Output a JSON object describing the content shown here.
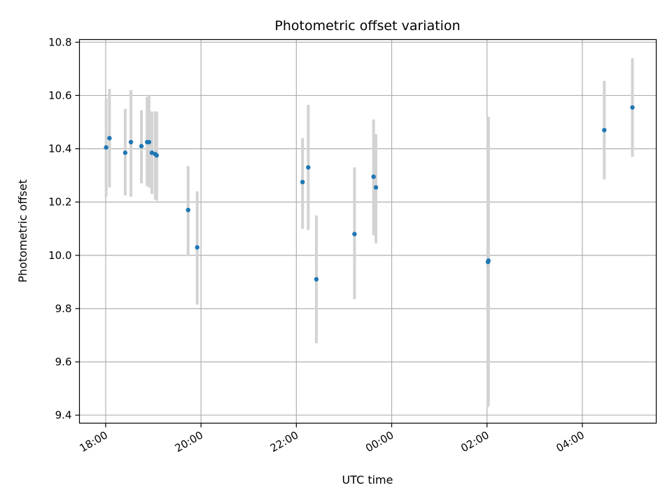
{
  "chart_data": {
    "type": "scatter",
    "title": "Photometric offset variation",
    "xlabel": "UTC time",
    "ylabel": "Photometric offset",
    "grid": true,
    "x_range_hours": [
      17.45,
      29.55
    ],
    "ylim": [
      9.37,
      10.81
    ],
    "x_ticks": [
      {
        "hour": 18,
        "label": "18:00"
      },
      {
        "hour": 20,
        "label": "20:00"
      },
      {
        "hour": 22,
        "label": "22:00"
      },
      {
        "hour": 24,
        "label": "00:00"
      },
      {
        "hour": 26,
        "label": "02:00"
      },
      {
        "hour": 28,
        "label": "04:00"
      }
    ],
    "y_ticks": [
      {
        "value": 9.4,
        "label": "9.4"
      },
      {
        "value": 9.6,
        "label": "9.6"
      },
      {
        "value": 9.8,
        "label": "9.8"
      },
      {
        "value": 10.0,
        "label": "10.0"
      },
      {
        "value": 10.2,
        "label": "10.2"
      },
      {
        "value": 10.4,
        "label": "10.4"
      },
      {
        "value": 10.6,
        "label": "10.6"
      },
      {
        "value": 10.8,
        "label": "10.8"
      }
    ],
    "point_color": "#1f77b4",
    "errorbar_color": "#d3d3d3",
    "points": [
      {
        "time": "18:00",
        "hour": 18.01,
        "y": 10.405,
        "lo": 10.22,
        "hi": 10.59
      },
      {
        "time": "18:05",
        "hour": 18.08,
        "y": 10.44,
        "lo": 10.255,
        "hi": 10.625
      },
      {
        "time": "18:25",
        "hour": 18.41,
        "y": 10.385,
        "lo": 10.225,
        "hi": 10.55
      },
      {
        "time": "18:32",
        "hour": 18.53,
        "y": 10.425,
        "lo": 10.22,
        "hi": 10.62
      },
      {
        "time": "18:45",
        "hour": 18.75,
        "y": 10.41,
        "lo": 10.27,
        "hi": 10.545
      },
      {
        "time": "18:52",
        "hour": 18.87,
        "y": 10.425,
        "lo": 10.26,
        "hi": 10.595
      },
      {
        "time": "18:55",
        "hour": 18.91,
        "y": 10.425,
        "lo": 10.255,
        "hi": 10.6
      },
      {
        "time": "18:58",
        "hour": 18.97,
        "y": 10.385,
        "lo": 10.23,
        "hi": 10.54
      },
      {
        "time": "19:02",
        "hour": 19.04,
        "y": 10.38,
        "lo": 10.21,
        "hi": 10.54
      },
      {
        "time": "19:04",
        "hour": 19.07,
        "y": 10.375,
        "lo": 10.205,
        "hi": 10.54
      },
      {
        "time": "19:43",
        "hour": 19.73,
        "y": 10.17,
        "lo": 10.0,
        "hi": 10.335
      },
      {
        "time": "19:55",
        "hour": 19.92,
        "y": 10.03,
        "lo": 9.815,
        "hi": 10.24
      },
      {
        "time": "22:08",
        "hour": 22.13,
        "y": 10.275,
        "lo": 10.1,
        "hi": 10.44
      },
      {
        "time": "22:15",
        "hour": 22.25,
        "y": 10.33,
        "lo": 10.095,
        "hi": 10.565
      },
      {
        "time": "22:25",
        "hour": 22.42,
        "y": 9.91,
        "lo": 9.67,
        "hi": 10.15
      },
      {
        "time": "23:13",
        "hour": 23.22,
        "y": 10.08,
        "lo": 9.835,
        "hi": 10.33
      },
      {
        "time": "23:37",
        "hour": 23.62,
        "y": 10.295,
        "lo": 10.075,
        "hi": 10.51
      },
      {
        "time": "23:40",
        "hour": 23.67,
        "y": 10.255,
        "lo": 10.045,
        "hi": 10.455
      },
      {
        "time": "02:01",
        "hour": 26.02,
        "y": 9.975,
        "lo": 9.43,
        "hi": 10.515
      },
      {
        "time": "02:02",
        "hour": 26.03,
        "y": 9.98,
        "lo": 9.44,
        "hi": 10.52
      },
      {
        "time": "04:28",
        "hour": 28.46,
        "y": 10.47,
        "lo": 10.285,
        "hi": 10.655
      },
      {
        "time": "05:03",
        "hour": 29.05,
        "y": 10.555,
        "lo": 10.37,
        "hi": 10.74
      }
    ]
  }
}
